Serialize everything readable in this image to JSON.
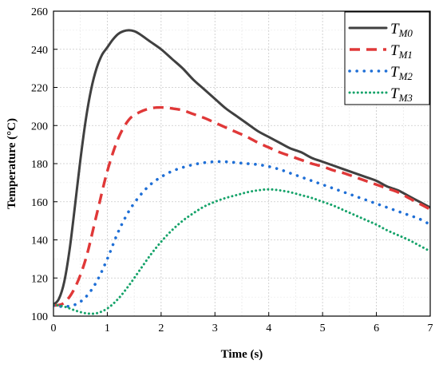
{
  "chart_data": {
    "type": "line",
    "title": "",
    "xlabel": "Time (s)",
    "ylabel": "Temperature (°C)",
    "xlim": [
      0,
      7
    ],
    "ylim": [
      100,
      260
    ],
    "xticks": [
      0,
      1,
      2,
      3,
      4,
      5,
      6,
      7
    ],
    "yticks": [
      100,
      120,
      140,
      160,
      180,
      200,
      220,
      240,
      260
    ],
    "grid": true,
    "legend_position": "top-right",
    "series": [
      {
        "name": "T_M0",
        "legend_base": "T",
        "legend_sub": "M0",
        "color": "#404040",
        "style": "solid",
        "points": [
          [
            0,
            106
          ],
          [
            0.1,
            109
          ],
          [
            0.2,
            118
          ],
          [
            0.3,
            135
          ],
          [
            0.4,
            158
          ],
          [
            0.5,
            182
          ],
          [
            0.6,
            203
          ],
          [
            0.7,
            219
          ],
          [
            0.8,
            230
          ],
          [
            0.9,
            237
          ],
          [
            1.0,
            241
          ],
          [
            1.1,
            245
          ],
          [
            1.2,
            248
          ],
          [
            1.3,
            249.5
          ],
          [
            1.4,
            250
          ],
          [
            1.5,
            249.5
          ],
          [
            1.6,
            248
          ],
          [
            1.8,
            244
          ],
          [
            2.0,
            240
          ],
          [
            2.2,
            235
          ],
          [
            2.4,
            230
          ],
          [
            2.6,
            224
          ],
          [
            2.8,
            219
          ],
          [
            3.0,
            214
          ],
          [
            3.2,
            209
          ],
          [
            3.4,
            205
          ],
          [
            3.6,
            201
          ],
          [
            3.8,
            197
          ],
          [
            4.0,
            194
          ],
          [
            4.2,
            191
          ],
          [
            4.4,
            188
          ],
          [
            4.6,
            186
          ],
          [
            4.8,
            183
          ],
          [
            5.0,
            181
          ],
          [
            5.2,
            179
          ],
          [
            5.4,
            177
          ],
          [
            5.6,
            175
          ],
          [
            5.8,
            173
          ],
          [
            6.0,
            171
          ],
          [
            6.2,
            168
          ],
          [
            6.4,
            166
          ],
          [
            6.6,
            163
          ],
          [
            6.8,
            160
          ],
          [
            7.0,
            157
          ]
        ]
      },
      {
        "name": "T_M1",
        "legend_base": "T",
        "legend_sub": "M1",
        "color": "#e03838",
        "style": "dashed",
        "points": [
          [
            0,
            105.5
          ],
          [
            0.2,
            107
          ],
          [
            0.4,
            115
          ],
          [
            0.6,
            130
          ],
          [
            0.8,
            153
          ],
          [
            1.0,
            176
          ],
          [
            1.2,
            193
          ],
          [
            1.4,
            203
          ],
          [
            1.6,
            207
          ],
          [
            1.8,
            209
          ],
          [
            2.0,
            209.5
          ],
          [
            2.2,
            209
          ],
          [
            2.4,
            208
          ],
          [
            2.6,
            206
          ],
          [
            2.8,
            204
          ],
          [
            3.0,
            201.5
          ],
          [
            3.2,
            199
          ],
          [
            3.4,
            196.5
          ],
          [
            3.6,
            194
          ],
          [
            3.8,
            191
          ],
          [
            4.0,
            188.5
          ],
          [
            4.2,
            186
          ],
          [
            4.4,
            184
          ],
          [
            4.6,
            182
          ],
          [
            4.8,
            180
          ],
          [
            5.0,
            178.5
          ],
          [
            5.2,
            176.5
          ],
          [
            5.4,
            175
          ],
          [
            5.6,
            173
          ],
          [
            5.8,
            171
          ],
          [
            6.0,
            169
          ],
          [
            6.2,
            167
          ],
          [
            6.4,
            165
          ],
          [
            6.6,
            162
          ],
          [
            6.8,
            159
          ],
          [
            7.0,
            156
          ]
        ]
      },
      {
        "name": "T_M2",
        "legend_base": "T",
        "legend_sub": "M2",
        "color": "#1f6fd6",
        "style": "dotted",
        "points": [
          [
            0,
            105.5
          ],
          [
            0.2,
            105
          ],
          [
            0.4,
            106
          ],
          [
            0.6,
            110
          ],
          [
            0.8,
            118
          ],
          [
            1.0,
            130
          ],
          [
            1.2,
            144
          ],
          [
            1.4,
            155
          ],
          [
            1.6,
            163
          ],
          [
            1.8,
            169
          ],
          [
            2.0,
            173
          ],
          [
            2.2,
            176
          ],
          [
            2.4,
            178
          ],
          [
            2.6,
            179.5
          ],
          [
            2.8,
            180.5
          ],
          [
            3.0,
            181
          ],
          [
            3.2,
            181
          ],
          [
            3.4,
            180.5
          ],
          [
            3.6,
            180
          ],
          [
            3.8,
            179.5
          ],
          [
            4.0,
            178.5
          ],
          [
            4.2,
            177
          ],
          [
            4.4,
            175
          ],
          [
            4.6,
            173
          ],
          [
            4.8,
            171
          ],
          [
            5.0,
            169
          ],
          [
            5.2,
            167
          ],
          [
            5.4,
            165
          ],
          [
            5.6,
            163
          ],
          [
            5.8,
            161
          ],
          [
            6.0,
            159
          ],
          [
            6.2,
            157
          ],
          [
            6.4,
            155
          ],
          [
            6.6,
            153
          ],
          [
            6.8,
            151
          ],
          [
            7.0,
            148
          ]
        ]
      },
      {
        "name": "T_M3",
        "legend_base": "T",
        "legend_sub": "M3",
        "color": "#16a36a",
        "style": "dotted-fine",
        "points": [
          [
            0,
            106
          ],
          [
            0.2,
            105
          ],
          [
            0.4,
            103
          ],
          [
            0.6,
            101.5
          ],
          [
            0.8,
            101.5
          ],
          [
            1.0,
            104
          ],
          [
            1.2,
            109
          ],
          [
            1.4,
            116
          ],
          [
            1.6,
            124
          ],
          [
            1.8,
            132
          ],
          [
            2.0,
            139
          ],
          [
            2.2,
            145
          ],
          [
            2.4,
            150
          ],
          [
            2.6,
            154
          ],
          [
            2.8,
            157.5
          ],
          [
            3.0,
            160
          ],
          [
            3.2,
            162
          ],
          [
            3.4,
            163.5
          ],
          [
            3.6,
            165
          ],
          [
            3.8,
            166
          ],
          [
            4.0,
            166.5
          ],
          [
            4.2,
            166
          ],
          [
            4.4,
            165
          ],
          [
            4.6,
            163.5
          ],
          [
            4.8,
            162
          ],
          [
            5.0,
            160
          ],
          [
            5.2,
            158
          ],
          [
            5.4,
            155.5
          ],
          [
            5.6,
            153
          ],
          [
            5.8,
            150.5
          ],
          [
            6.0,
            148
          ],
          [
            6.2,
            145
          ],
          [
            6.4,
            142.5
          ],
          [
            6.6,
            140
          ],
          [
            6.8,
            137
          ],
          [
            7.0,
            134
          ]
        ]
      }
    ]
  }
}
